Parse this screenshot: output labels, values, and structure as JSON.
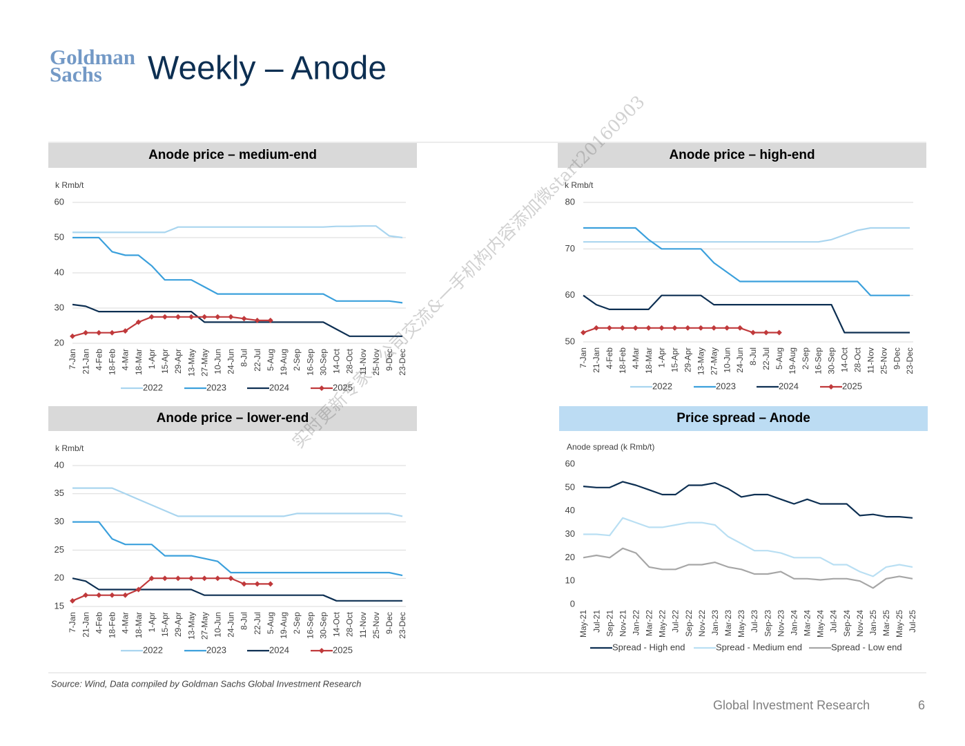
{
  "logo": {
    "line1": "Goldman",
    "line2": "Sachs"
  },
  "title": "Weekly – Anode",
  "watermark": "实时更新专家、公司交流&一手机构内容添加微start20160903",
  "chart_data": [
    {
      "type": "line",
      "title": "Anode price – medium-end",
      "ylabel": "k Rmb/t",
      "categories": [
        "7-Jan",
        "21-Jan",
        "4-Feb",
        "18-Feb",
        "4-Mar",
        "18-Mar",
        "1-Apr",
        "15-Apr",
        "29-Apr",
        "13-May",
        "27-May",
        "10-Jun",
        "24-Jun",
        "8-Jul",
        "22-Jul",
        "5-Aug",
        "19-Aug",
        "2-Sep",
        "16-Sep",
        "30-Sep",
        "14-Oct",
        "28-Oct",
        "11-Nov",
        "25-Nov",
        "9-Dec",
        "23-Dec"
      ],
      "ylim": [
        20,
        60
      ],
      "yticks": [
        20,
        30,
        40,
        50,
        60
      ],
      "grid": true,
      "series": [
        {
          "name": "2022",
          "color": "#a9d5ef",
          "values": [
            51.5,
            51.5,
            51.5,
            51.5,
            51.5,
            51.5,
            51.5,
            51.5,
            53,
            53,
            53,
            53,
            53,
            53,
            53,
            53,
            53,
            53,
            53,
            53,
            53.2,
            53.2,
            53.3,
            53.3,
            50.5,
            50
          ]
        },
        {
          "name": "2023",
          "color": "#3ba0dc",
          "values": [
            50,
            50,
            50,
            46,
            45,
            45,
            42,
            38,
            38,
            38,
            36,
            34,
            34,
            34,
            34,
            34,
            34,
            34,
            34,
            34,
            32,
            32,
            32,
            32,
            32,
            31.5
          ]
        },
        {
          "name": "2024",
          "color": "#0d2f52",
          "values": [
            31,
            30.5,
            29,
            29,
            29,
            29,
            29,
            29,
            29,
            29,
            26,
            26,
            26,
            26,
            26,
            26,
            26,
            26,
            26,
            26,
            24,
            22,
            22,
            22,
            22,
            22
          ]
        },
        {
          "name": "2025",
          "color": "#c0393b",
          "marker": "diamond",
          "values": [
            22,
            23,
            23,
            23,
            23.5,
            26,
            27.5,
            27.5,
            27.5,
            27.5,
            27.5,
            27.5,
            27.5,
            27,
            26.5,
            26.5,
            null,
            null,
            null,
            null,
            null,
            null,
            null,
            null,
            null,
            null
          ]
        }
      ]
    },
    {
      "type": "line",
      "title": "Anode price – high-end",
      "ylabel": "k Rmb/t",
      "categories": [
        "7-Jan",
        "21-Jan",
        "4-Feb",
        "18-Feb",
        "4-Mar",
        "18-Mar",
        "1-Apr",
        "15-Apr",
        "29-Apr",
        "13-May",
        "27-May",
        "10-Jun",
        "24-Jun",
        "8-Jul",
        "22-Jul",
        "5-Aug",
        "19-Aug",
        "2-Sep",
        "16-Sep",
        "30-Sep",
        "14-Oct",
        "28-Oct",
        "11-Nov",
        "25-Nov",
        "9-Dec",
        "23-Dec"
      ],
      "ylim": [
        50,
        80
      ],
      "yticks": [
        50,
        60,
        70,
        80
      ],
      "grid": true,
      "series": [
        {
          "name": "2022",
          "color": "#a9d5ef",
          "values": [
            71.5,
            71.5,
            71.5,
            71.5,
            71.5,
            71.5,
            71.5,
            71.5,
            71.5,
            71.5,
            71.5,
            71.5,
            71.5,
            71.5,
            71.5,
            71.5,
            71.5,
            71.5,
            71.5,
            72,
            73,
            74,
            74.5,
            74.5,
            74.5,
            74.5
          ]
        },
        {
          "name": "2023",
          "color": "#3ba0dc",
          "values": [
            74.5,
            74.5,
            74.5,
            74.5,
            74.5,
            72,
            70,
            70,
            70,
            70,
            67,
            65,
            63,
            63,
            63,
            63,
            63,
            63,
            63,
            63,
            63,
            63,
            60,
            60,
            60,
            60
          ]
        },
        {
          "name": "2024",
          "color": "#0d2f52",
          "values": [
            60,
            58,
            57,
            57,
            57,
            57,
            60,
            60,
            60,
            60,
            58,
            58,
            58,
            58,
            58,
            58,
            58,
            58,
            58,
            58,
            52,
            52,
            52,
            52,
            52,
            52
          ]
        },
        {
          "name": "2025",
          "color": "#c0393b",
          "marker": "diamond",
          "values": [
            52,
            53,
            53,
            53,
            53,
            53,
            53,
            53,
            53,
            53,
            53,
            53,
            53,
            52,
            52,
            52,
            null,
            null,
            null,
            null,
            null,
            null,
            null,
            null,
            null,
            null
          ]
        }
      ]
    },
    {
      "type": "line",
      "title": "Anode price – lower-end",
      "ylabel": "k Rmb/t",
      "categories": [
        "7-Jan",
        "21-Jan",
        "4-Feb",
        "18-Feb",
        "4-Mar",
        "18-Mar",
        "1-Apr",
        "15-Apr",
        "29-Apr",
        "13-May",
        "27-May",
        "10-Jun",
        "24-Jun",
        "8-Jul",
        "22-Jul",
        "5-Aug",
        "19-Aug",
        "2-Sep",
        "16-Sep",
        "30-Sep",
        "14-Oct",
        "28-Oct",
        "11-Nov",
        "25-Nov",
        "9-Dec",
        "23-Dec"
      ],
      "ylim": [
        15,
        40
      ],
      "yticks": [
        15,
        20,
        25,
        30,
        35,
        40
      ],
      "grid": true,
      "series": [
        {
          "name": "2022",
          "color": "#a9d5ef",
          "values": [
            36,
            36,
            36,
            36,
            35,
            34,
            33,
            32,
            31,
            31,
            31,
            31,
            31,
            31,
            31,
            31,
            31,
            31.5,
            31.5,
            31.5,
            31.5,
            31.5,
            31.5,
            31.5,
            31.5,
            31
          ]
        },
        {
          "name": "2023",
          "color": "#3ba0dc",
          "values": [
            30,
            30,
            30,
            27,
            26,
            26,
            26,
            24,
            24,
            24,
            23.5,
            23,
            21,
            21,
            21,
            21,
            21,
            21,
            21,
            21,
            21,
            21,
            21,
            21,
            21,
            20.5
          ]
        },
        {
          "name": "2024",
          "color": "#0d2f52",
          "values": [
            20,
            19.5,
            18,
            18,
            18,
            18,
            18,
            18,
            18,
            18,
            17,
            17,
            17,
            17,
            17,
            17,
            17,
            17,
            17,
            17,
            16,
            16,
            16,
            16,
            16,
            16
          ]
        },
        {
          "name": "2025",
          "color": "#c0393b",
          "marker": "diamond",
          "values": [
            16,
            17,
            17,
            17,
            17,
            18,
            20,
            20,
            20,
            20,
            20,
            20,
            20,
            19,
            19,
            19,
            null,
            null,
            null,
            null,
            null,
            null,
            null,
            null,
            null,
            null
          ]
        }
      ]
    },
    {
      "type": "line",
      "title": "Price spread – Anode",
      "ylabel": "Anode spread (k Rmb/t)",
      "categories": [
        "May-21",
        "Jul-21",
        "Sep-21",
        "Nov-21",
        "Jan-22",
        "Mar-22",
        "May-22",
        "Jul-22",
        "Sep-22",
        "Nov-22",
        "Jan-23",
        "Mar-23",
        "May-23",
        "Jul-23",
        "Sep-23",
        "Nov-23",
        "Jan-24",
        "Mar-24",
        "May-24",
        "Jul-24",
        "Sep-24",
        "Nov-24",
        "Jan-25",
        "Mar-25",
        "May-25",
        "Jul-25"
      ],
      "ylim": [
        0,
        60
      ],
      "yticks": [
        0,
        10,
        20,
        30,
        40,
        50,
        60
      ],
      "grid": false,
      "series": [
        {
          "name": "Spread - High end",
          "color": "#0d2f52",
          "values": [
            50.5,
            50,
            50,
            52.5,
            51,
            49,
            47,
            47,
            51,
            51,
            52,
            49.5,
            46,
            47,
            47,
            45,
            43,
            45,
            43,
            43,
            43,
            38,
            38.5,
            37.5,
            37.5,
            37
          ]
        },
        {
          "name": "Spread - Medium end",
          "color": "#b9dff3",
          "values": [
            30,
            30,
            29.5,
            37,
            35,
            33,
            33,
            34,
            35,
            35,
            34,
            29,
            26,
            23,
            23,
            22,
            20,
            20,
            20,
            17,
            17,
            14,
            12,
            16,
            17,
            16
          ]
        },
        {
          "name": "Spread - Low end",
          "color": "#a6a6a6",
          "values": [
            20,
            21,
            20,
            24,
            22,
            16,
            15,
            15,
            17,
            17,
            18,
            16,
            15,
            13,
            13,
            14,
            11,
            11,
            10.5,
            11,
            11,
            10,
            7,
            11,
            12,
            11
          ]
        }
      ]
    }
  ],
  "source": "Source: Wind, Data compiled by Goldman Sachs Global Investment Research",
  "footer": "Global Investment Research",
  "page_number": "6"
}
